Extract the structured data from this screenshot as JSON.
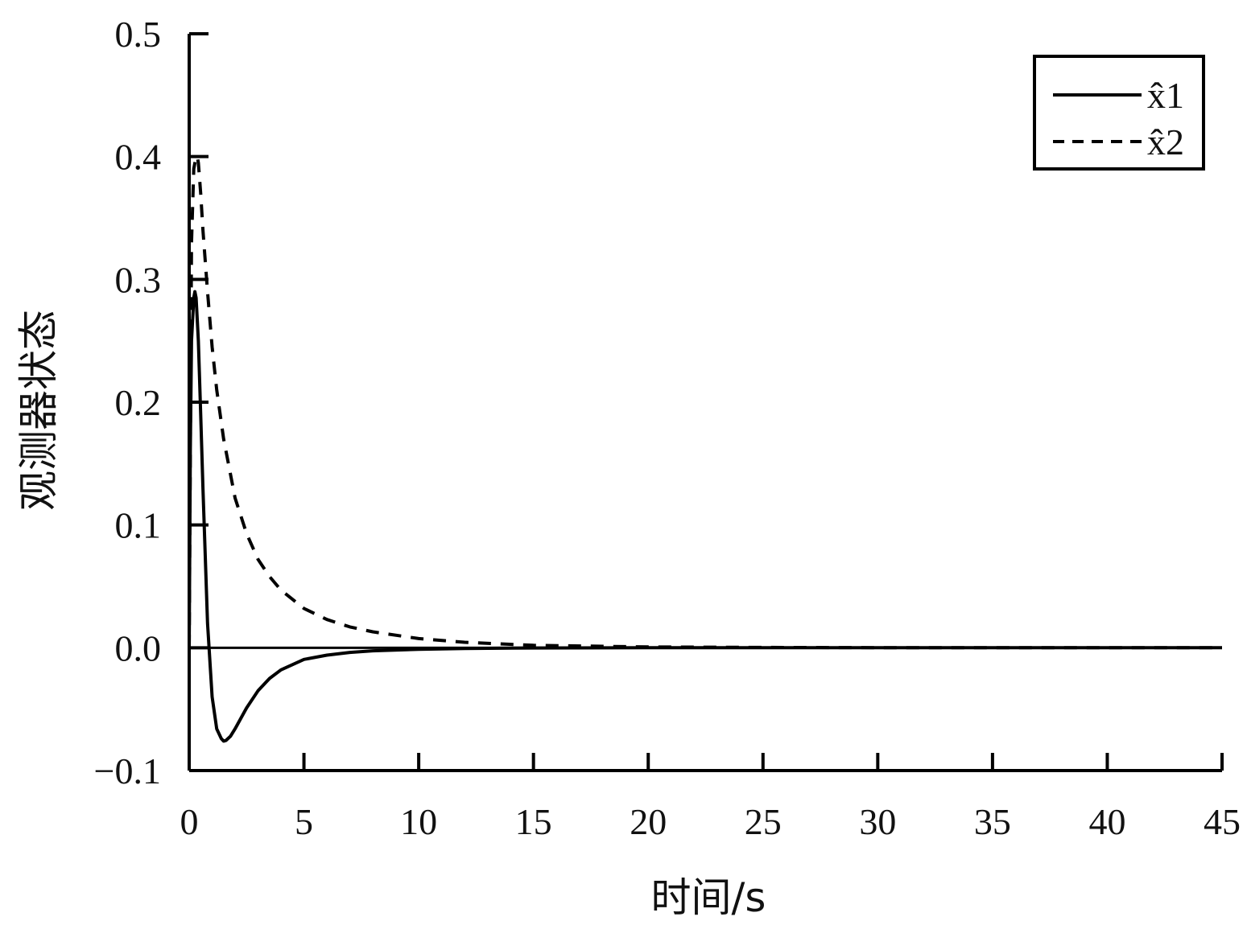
{
  "chart_data": {
    "type": "line",
    "xlabel": "时间/s",
    "ylabel": "观测器状态",
    "xlim": [
      0,
      45
    ],
    "ylim": [
      -0.1,
      0.5
    ],
    "xticks": [
      0,
      5,
      10,
      15,
      20,
      25,
      30,
      35,
      40,
      45
    ],
    "xtick_labels": [
      "0",
      "5",
      "10",
      "15",
      "20",
      "25",
      "30",
      "35",
      "40",
      "45"
    ],
    "yticks": [
      -0.1,
      0.0,
      0.1,
      0.2,
      0.3,
      0.4,
      0.5
    ],
    "ytick_labels": [
      "−0.1",
      "0.0",
      "0.1",
      "0.2",
      "0.3",
      "0.4",
      "0.5"
    ],
    "grid": false,
    "legend_position": "top-right",
    "series": [
      {
        "name": "x̂1",
        "style": "solid",
        "color": "#000000",
        "x": [
          0,
          0.05,
          0.1,
          0.2,
          0.25,
          0.3,
          0.4,
          0.5,
          0.6,
          0.8,
          1.0,
          1.2,
          1.4,
          1.5,
          1.6,
          1.8,
          2.0,
          2.5,
          3.0,
          3.5,
          4.0,
          5.0,
          6.0,
          7.0,
          8.0,
          10.0,
          12.0,
          15.0,
          20.0,
          25.0,
          30.0,
          35.0,
          40.0,
          45.0
        ],
        "y": [
          0.0,
          0.16,
          0.25,
          0.285,
          0.29,
          0.285,
          0.25,
          0.19,
          0.13,
          0.02,
          -0.04,
          -0.066,
          -0.074,
          -0.076,
          -0.0755,
          -0.072,
          -0.066,
          -0.049,
          -0.035,
          -0.025,
          -0.018,
          -0.0095,
          -0.006,
          -0.0038,
          -0.0025,
          -0.0012,
          -0.0006,
          -0.0002,
          0.0,
          0.0,
          0.0,
          0.0,
          0.0,
          0.0
        ]
      },
      {
        "name": "x̂2",
        "style": "dashed",
        "color": "#000000",
        "x": [
          0,
          0.1,
          0.2,
          0.3,
          0.35,
          0.4,
          0.5,
          0.6,
          0.8,
          1.0,
          1.2,
          1.5,
          2.0,
          2.5,
          3.0,
          3.5,
          4.0,
          5.0,
          6.0,
          7.0,
          8.0,
          10.0,
          12.0,
          15.0,
          20.0,
          25.0,
          30.0,
          35.0,
          40.0,
          45.0
        ],
        "y": [
          0.0,
          0.33,
          0.39,
          0.4,
          0.4,
          0.395,
          0.37,
          0.34,
          0.29,
          0.245,
          0.21,
          0.17,
          0.122,
          0.093,
          0.072,
          0.058,
          0.047,
          0.032,
          0.023,
          0.017,
          0.013,
          0.0075,
          0.0045,
          0.002,
          0.0007,
          0.0003,
          0.0001,
          0.0,
          0.0,
          0.0
        ]
      }
    ]
  }
}
